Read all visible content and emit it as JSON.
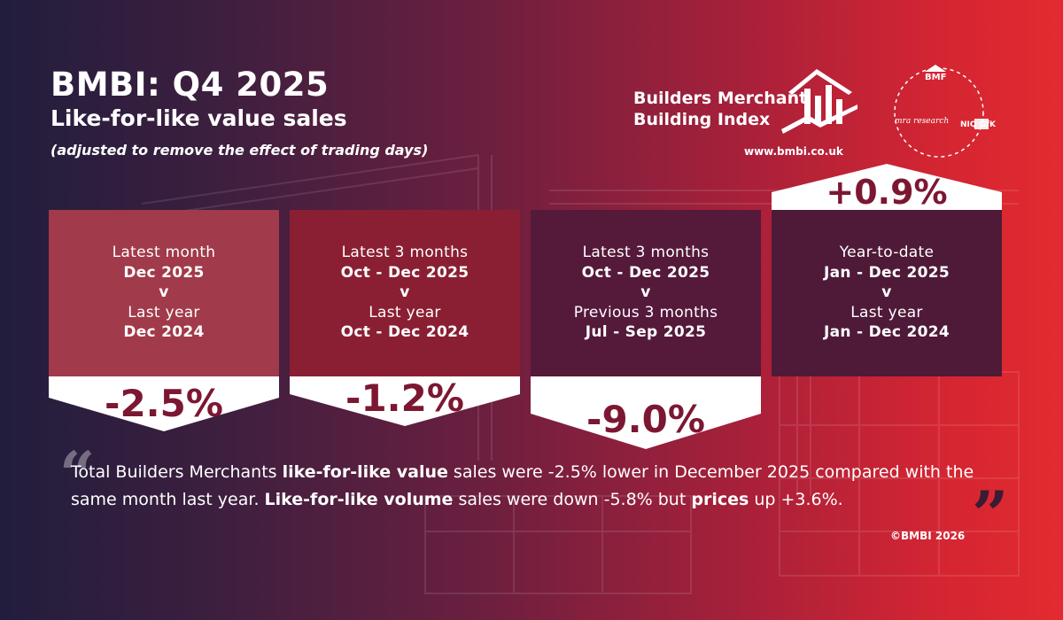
{
  "header": {
    "title": "BMBI: Q4 2025",
    "subtitle": "Like-for-like value sales",
    "note": "(adjusted to remove the effect of trading days)"
  },
  "logo": {
    "line1": "Builders Merchant",
    "line2": "Building Index",
    "url": "www.bmbi.co.uk"
  },
  "partners": {
    "bmf": "BMF",
    "mra": "mra research",
    "niq": "NIQ GfK"
  },
  "cards": [
    {
      "l1": "Latest month",
      "l2": "Dec 2025",
      "l3": "v",
      "l4": "Last year",
      "l5": "Dec 2024",
      "value": "-2.5%"
    },
    {
      "l1": "Latest 3 months",
      "l2": "Oct - Dec 2025",
      "l3": "v",
      "l4": "Last year",
      "l5": "Oct - Dec 2024",
      "value": "-1.2%"
    },
    {
      "l1": "Latest 3 months",
      "l2": "Oct - Dec 2025",
      "l3": "v",
      "l4": "Previous 3 months",
      "l5": "Jul - Sep 2025",
      "value": "-9.0%"
    },
    {
      "l1": "Year-to-date",
      "l2": "Jan - Dec 2025",
      "l3": "v",
      "l4": "Last year",
      "l5": "Jan - Dec 2024",
      "value": "+0.9%"
    }
  ],
  "summary": {
    "p1": "Total Builders Merchants ",
    "b1": "like-for-like value",
    "p2": " sales were -2.5% lower in December 2025 compared with the same month last year. ",
    "b2": "Like-for-like volume",
    "p3": " sales were down -5.8% but ",
    "b3": "prices",
    "p4": " up +3.6%."
  },
  "quote": {
    "open": "“",
    "close": "”"
  },
  "footer": {
    "copyright": "©BMBI 2026"
  },
  "colors": {
    "value_text": "#7c1732",
    "card1": "#a13a4a",
    "card2": "#8a1f33",
    "card3": "#55193a",
    "card4": "#4f1a38"
  }
}
